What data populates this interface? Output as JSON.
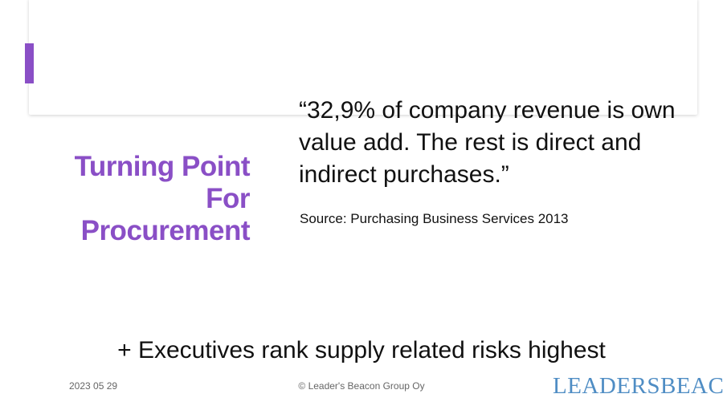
{
  "slide": {
    "title_lines": [
      "Turning Point",
      "For",
      "Procurement"
    ],
    "quote": "“32,9% of company revenue is own value add. The rest is direct and indirect purchases.”",
    "source": "Source: Purchasing Business Services 2013",
    "bullet": "+ Executives rank supply related risks highest"
  },
  "footer": {
    "date": "2023 05 29",
    "copyright": "© Leader's Beacon Group Oy",
    "logo_text": "LEADERSBEACON"
  },
  "colors": {
    "accent": "#8a4fc6",
    "logo": "#4f8dc4",
    "text": "#111111",
    "footer_text": "#666666"
  }
}
